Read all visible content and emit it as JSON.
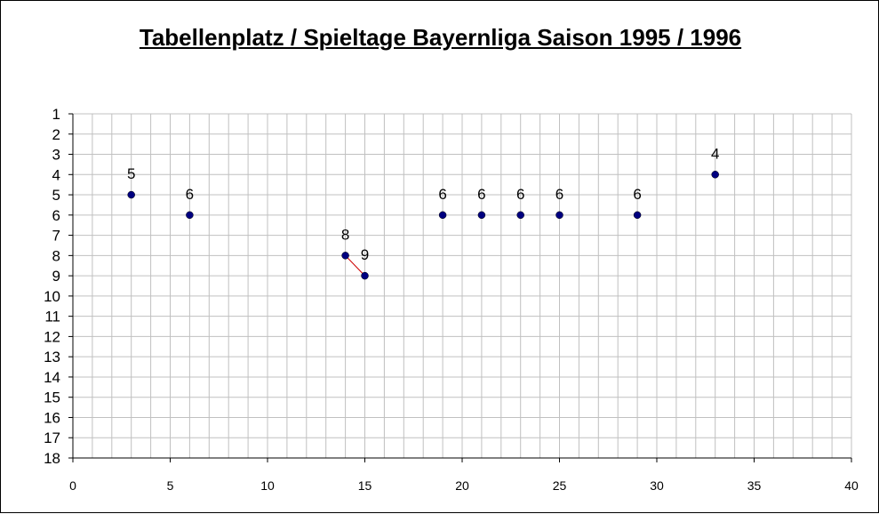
{
  "chart_data": {
    "type": "scatter",
    "title": "Tabellenplatz / Spieltage Bayernliga Saison 1995 / 1996",
    "xlabel": "",
    "ylabel": "",
    "xlim": [
      0,
      40
    ],
    "ylim": [
      1,
      18
    ],
    "y_inverted": true,
    "x_ticks": [
      0,
      5,
      10,
      15,
      20,
      25,
      30,
      35,
      40
    ],
    "y_ticks": [
      1,
      2,
      3,
      4,
      5,
      6,
      7,
      8,
      9,
      10,
      11,
      12,
      13,
      14,
      15,
      16,
      17,
      18
    ],
    "grid": true,
    "points": [
      {
        "x": 3,
        "y": 5,
        "label": "5"
      },
      {
        "x": 6,
        "y": 6,
        "label": "6"
      },
      {
        "x": 14,
        "y": 8,
        "label": "8"
      },
      {
        "x": 15,
        "y": 9,
        "label": "9"
      },
      {
        "x": 19,
        "y": 6,
        "label": "6"
      },
      {
        "x": 21,
        "y": 6,
        "label": "6"
      },
      {
        "x": 23,
        "y": 6,
        "label": "6"
      },
      {
        "x": 25,
        "y": 6,
        "label": "6"
      },
      {
        "x": 29,
        "y": 6,
        "label": "6"
      },
      {
        "x": 33,
        "y": 4,
        "label": "4"
      }
    ],
    "line_segments": [
      [
        14,
        15
      ]
    ],
    "colors": {
      "marker": "#000080",
      "line": "#cc0000",
      "grid": "#c0c0c0",
      "axis": "#000000"
    }
  }
}
